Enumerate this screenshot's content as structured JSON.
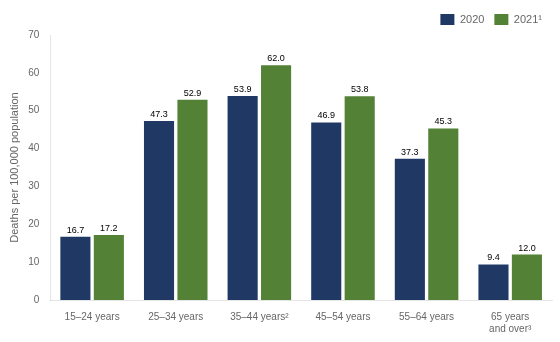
{
  "chart_data": {
    "type": "bar",
    "categories": [
      "15–24 years",
      "25–34 years",
      "35–44 years²",
      "45–54 years",
      "55–64 years",
      "65 years and over³"
    ],
    "series": [
      {
        "name": "2020",
        "color": "#1f3864",
        "values": [
          16.7,
          47.3,
          53.9,
          46.9,
          37.3,
          9.4
        ],
        "value_labels": [
          "16.7",
          "47.3",
          "53.9",
          "46.9",
          "37.3",
          "9.4"
        ]
      },
      {
        "name": "2021¹",
        "color": "#538135",
        "values": [
          17.2,
          52.9,
          62.0,
          53.8,
          45.3,
          12.0
        ],
        "value_labels": [
          "17.2",
          "52.9",
          "62.0",
          "53.8",
          "45.3",
          "12.0"
        ]
      }
    ],
    "ylabel": "Deaths per 100,000 population",
    "ylim": [
      0,
      70
    ],
    "yticks": [
      0,
      10,
      20,
      30,
      40,
      50,
      60,
      70
    ],
    "grid": false,
    "legend": "upper right",
    "data_labels": true
  }
}
